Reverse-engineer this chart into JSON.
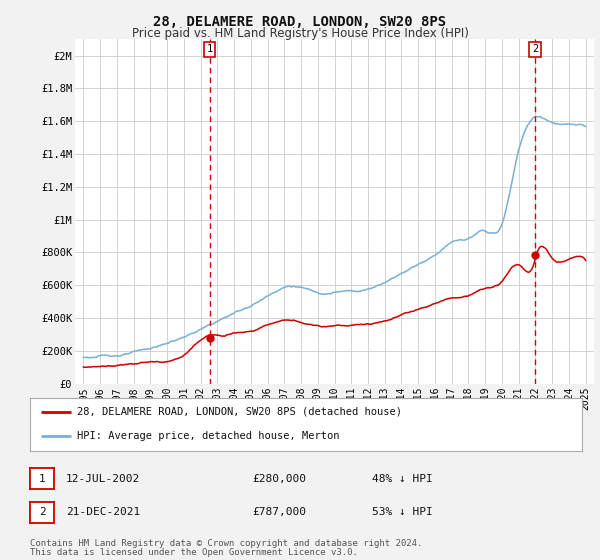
{
  "title": "28, DELAMERE ROAD, LONDON, SW20 8PS",
  "subtitle": "Price paid vs. HM Land Registry's House Price Index (HPI)",
  "ylabel_ticks": [
    0,
    200000,
    400000,
    600000,
    800000,
    1000000,
    1200000,
    1400000,
    1600000,
    1800000,
    2000000
  ],
  "ylabel_labels": [
    "£0",
    "£200K",
    "£400K",
    "£600K",
    "£800K",
    "£1M",
    "£1.2M",
    "£1.4M",
    "£1.6M",
    "£1.8M",
    "£2M"
  ],
  "ylim": [
    0,
    2100000
  ],
  "xlim_start": 1994.5,
  "xlim_end": 2025.5,
  "point1_year": 2002.54,
  "point1_price": 280000,
  "point2_year": 2021.97,
  "point2_price": 787000,
  "legend_line1": "28, DELAMERE ROAD, LONDON, SW20 8PS (detached house)",
  "legend_line2": "HPI: Average price, detached house, Merton",
  "footnote1": "Contains HM Land Registry data © Crown copyright and database right 2024.",
  "footnote2": "This data is licensed under the Open Government Licence v3.0.",
  "red_color": "#cc0000",
  "blue_color": "#7ab0d4",
  "dashed_color": "#cc0000",
  "bg_color": "#f2f2f2",
  "plot_bg": "#ffffff",
  "grid_color": "#cccccc",
  "table_row1": [
    "1",
    "12-JUL-2002",
    "£280,000",
    "48% ↓ HPI"
  ],
  "table_row2": [
    "2",
    "21-DEC-2021",
    "£787,000",
    "53% ↓ HPI"
  ]
}
